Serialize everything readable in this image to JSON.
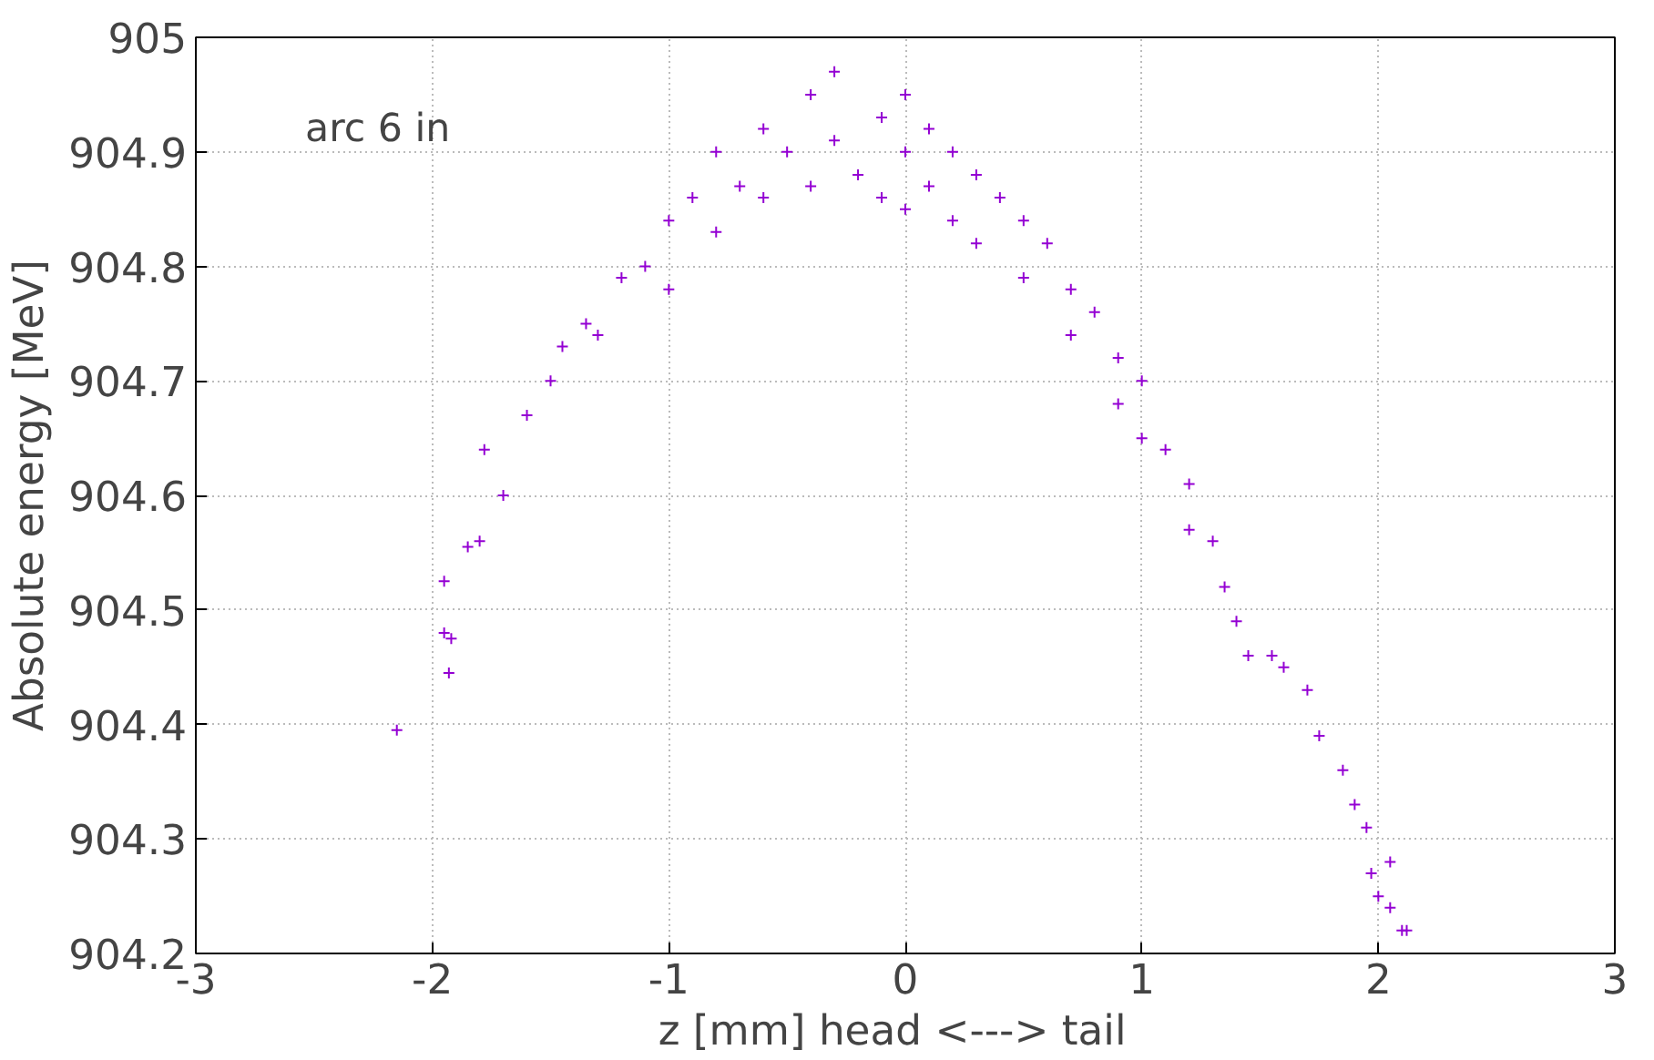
{
  "chart_data": {
    "type": "scatter",
    "xlabel": "z [mm]   head <---> tail",
    "ylabel": "Absolute energy [MeV]",
    "annotations": [
      "arc 6 in"
    ],
    "xlim": [
      -3,
      3
    ],
    "ylim": [
      904.2,
      905
    ],
    "xticks": [
      -3,
      -2,
      -1,
      0,
      1,
      2,
      3
    ],
    "yticks": [
      904.2,
      904.3,
      904.4,
      904.5,
      904.6,
      904.7,
      904.8,
      904.9,
      905
    ],
    "grid": true,
    "marker": "cross",
    "series": [
      {
        "color": "#9400d3",
        "x": [
          -2.15,
          -1.95,
          -1.95,
          -1.92,
          -1.93,
          -1.85,
          -1.8,
          -1.78,
          -1.7,
          -1.6,
          -1.5,
          -1.45,
          -1.35,
          -1.3,
          -1.2,
          -1.1,
          -1.0,
          -1.0,
          -0.9,
          -0.8,
          -0.8,
          -0.7,
          -0.6,
          -0.6,
          -0.5,
          -0.4,
          -0.4,
          -0.3,
          -0.3,
          -0.2,
          -0.1,
          -0.1,
          0,
          0,
          0,
          0.1,
          0.1,
          0.2,
          0.2,
          0.3,
          0.3,
          0.4,
          0.5,
          0.5,
          0.6,
          0.7,
          0.7,
          0.8,
          0.9,
          0.9,
          1.0,
          1.0,
          1.1,
          1.2,
          1.2,
          1.3,
          1.35,
          1.4,
          1.45,
          1.55,
          1.6,
          1.7,
          1.75,
          1.85,
          1.9,
          1.95,
          1.97,
          2.0,
          2.05,
          2.05,
          2.1,
          2.12
        ],
        "values": [
          904.395,
          904.525,
          904.48,
          904.475,
          904.445,
          904.555,
          904.56,
          904.64,
          904.6,
          904.67,
          904.7,
          904.73,
          904.75,
          904.74,
          904.79,
          904.8,
          904.84,
          904.78,
          904.86,
          904.83,
          904.9,
          904.87,
          904.92,
          904.86,
          904.9,
          904.95,
          904.87,
          904.91,
          904.97,
          904.88,
          904.93,
          904.86,
          904.95,
          904.9,
          904.85,
          904.92,
          904.87,
          904.9,
          904.84,
          904.88,
          904.82,
          904.86,
          904.84,
          904.79,
          904.82,
          904.78,
          904.74,
          904.76,
          904.72,
          904.68,
          904.7,
          904.65,
          904.64,
          904.61,
          904.57,
          904.56,
          904.52,
          904.49,
          904.46,
          904.46,
          904.45,
          904.43,
          904.39,
          904.36,
          904.33,
          904.31,
          904.27,
          904.25,
          904.28,
          904.24,
          904.22,
          904.22
        ]
      }
    ]
  }
}
